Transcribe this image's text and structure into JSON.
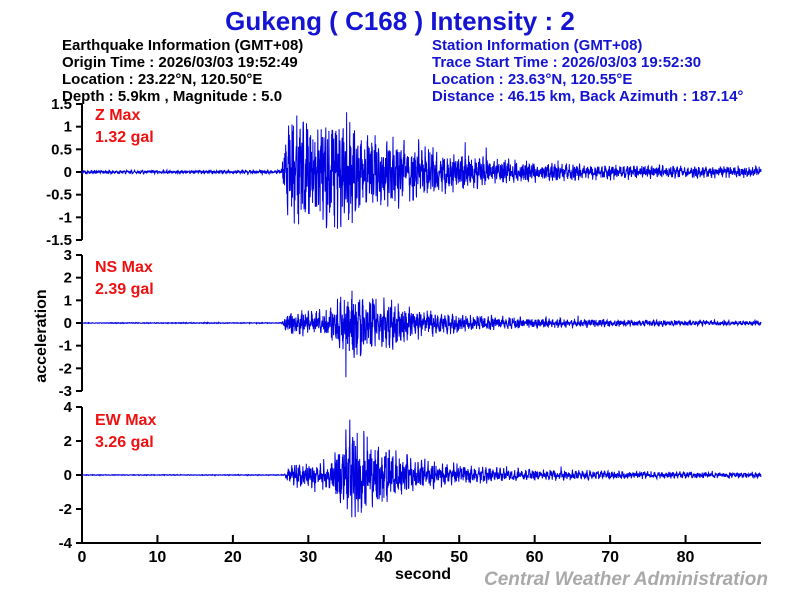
{
  "page": {
    "title": "Gukeng ( C168 )  Intensity : 2",
    "watermark": "Central Weather Administration"
  },
  "earthquake_info": {
    "heading": "Earthquake Information  (GMT+08)",
    "origin_time": "Origin Time : 2026/03/03 19:52:49",
    "location": "Location : 23.22°N, 120.50°E",
    "depth_magnitude": "Depth : 5.9km , Magnitude : 5.0"
  },
  "station_info": {
    "heading": "Station Information  (GMT+08)",
    "trace_start_time": "Trace Start Time : 2026/03/03 19:52:30",
    "location": "Location : 23.63°N, 120.55°E",
    "distance_azimuth": "Distance : 46.15 km, Back Azimuth : 187.14°"
  },
  "colors": {
    "title_blue": "#1414d2",
    "trace_blue": "#0000e0",
    "max_label_red": "#ee1111",
    "axis_black": "#000000",
    "watermark_gray": "#a9a9a9"
  },
  "chart_data": {
    "type": "line",
    "title": "Gukeng ( C168 )  Intensity : 2",
    "xlabel": "second",
    "ylabel": "acceleration",
    "unit": "gal",
    "grid": false,
    "x_range": [
      0,
      90
    ],
    "x_ticks": [
      0,
      10,
      20,
      30,
      40,
      50,
      60,
      70,
      80
    ],
    "trace_color": "#0000e0",
    "p_onset_s": 26.6,
    "series": [
      {
        "name": "Z",
        "label": "Z Max",
        "value_label": "1.32 gal",
        "max_gal": 1.32,
        "ylim": [
          -1.5,
          1.5
        ],
        "y_ticks": [
          "1.5",
          "1",
          "0.5",
          "0",
          "-0.5",
          "-1",
          "-1.5"
        ],
        "seed": 42,
        "envelope": [
          [
            0,
            0.04
          ],
          [
            26.4,
            0.04
          ],
          [
            26.7,
            0.6
          ],
          [
            27.3,
            1.15
          ],
          [
            28.5,
            1.3
          ],
          [
            30,
            1.1
          ],
          [
            32,
            1.05
          ],
          [
            34,
            1.2
          ],
          [
            36,
            0.95
          ],
          [
            38,
            0.85
          ],
          [
            40,
            0.75
          ],
          [
            43,
            0.62
          ],
          [
            46,
            0.5
          ],
          [
            50,
            0.4
          ],
          [
            54,
            0.3
          ],
          [
            58,
            0.25
          ],
          [
            63,
            0.2
          ],
          [
            70,
            0.16
          ],
          [
            78,
            0.13
          ],
          [
            90,
            0.11
          ]
        ]
      },
      {
        "name": "NS",
        "label": "NS Max",
        "value_label": "2.39 gal",
        "max_gal": 2.39,
        "ylim": [
          -3,
          3
        ],
        "y_ticks": [
          "3",
          "2",
          "1",
          "0",
          "-1",
          "-2",
          "-3"
        ],
        "seed": 1337,
        "envelope": [
          [
            0,
            0.03
          ],
          [
            26.5,
            0.03
          ],
          [
            26.8,
            0.5
          ],
          [
            27.5,
            0.8
          ],
          [
            30,
            0.85
          ],
          [
            32.5,
            0.8
          ],
          [
            33.5,
            1.5
          ],
          [
            35,
            2.1
          ],
          [
            36.5,
            2.39
          ],
          [
            38,
            2.0
          ],
          [
            40,
            1.75
          ],
          [
            42,
            1.4
          ],
          [
            44,
            1.05
          ],
          [
            46,
            0.85
          ],
          [
            48,
            0.7
          ],
          [
            52,
            0.55
          ],
          [
            56,
            0.42
          ],
          [
            60,
            0.35
          ],
          [
            66,
            0.28
          ],
          [
            72,
            0.24
          ],
          [
            80,
            0.2
          ],
          [
            90,
            0.16
          ]
        ]
      },
      {
        "name": "EW",
        "label": "EW Max",
        "value_label": "3.26 gal",
        "max_gal": 3.26,
        "ylim": [
          -4,
          4
        ],
        "y_ticks": [
          "4",
          "2",
          "0",
          "-2",
          "-4"
        ],
        "seed": 2024,
        "envelope": [
          [
            0,
            0.03
          ],
          [
            26.8,
            0.03
          ],
          [
            27.1,
            0.55
          ],
          [
            28,
            0.8
          ],
          [
            31,
            0.85
          ],
          [
            33,
            1.1
          ],
          [
            34,
            2.3
          ],
          [
            35.5,
            3.0
          ],
          [
            36.5,
            3.26
          ],
          [
            38,
            2.6
          ],
          [
            40,
            2.1
          ],
          [
            42,
            1.6
          ],
          [
            44,
            1.25
          ],
          [
            46,
            1.0
          ],
          [
            48,
            0.85
          ],
          [
            52,
            0.65
          ],
          [
            56,
            0.5
          ],
          [
            60,
            0.42
          ],
          [
            66,
            0.34
          ],
          [
            72,
            0.28
          ],
          [
            80,
            0.24
          ],
          [
            90,
            0.2
          ]
        ]
      }
    ]
  }
}
